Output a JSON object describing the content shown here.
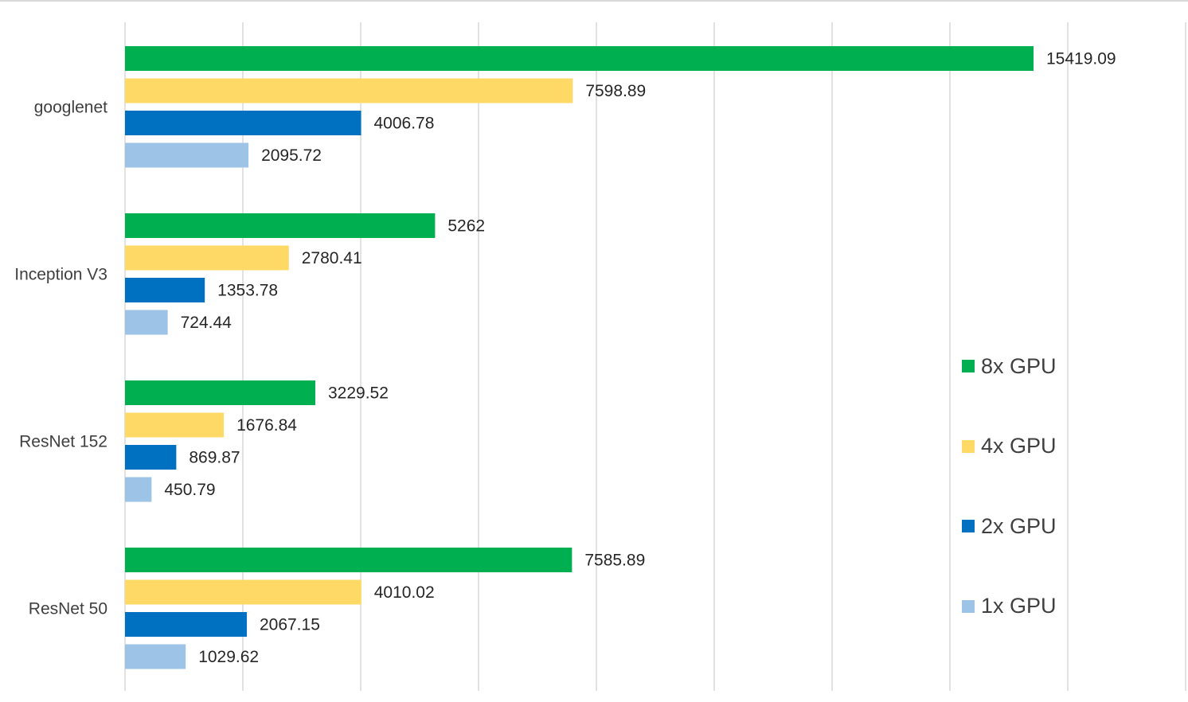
{
  "colors": {
    "gpu8": "#00b050",
    "gpu4": "#ffd966",
    "gpu2": "#0070c0",
    "gpu1": "#9dc3e6",
    "grid": "#d9d9d9"
  },
  "chart_data": {
    "type": "bar",
    "orientation": "horizontal",
    "title": "",
    "xlabel": "",
    "ylabel": "",
    "xlim": [
      0,
      18000
    ],
    "grid": true,
    "legend_position": "right",
    "categories": [
      "googlenet",
      "Inception V3",
      "ResNet 152",
      "ResNet 50"
    ],
    "series": [
      {
        "name": "8x GPU",
        "color": "#00b050",
        "values": [
          15419.09,
          5262,
          3229.52,
          7585.89
        ],
        "labels": [
          "15419.09",
          "5262",
          "3229.52",
          "7585.89"
        ]
      },
      {
        "name": "4x GPU",
        "color": "#ffd966",
        "values": [
          7598.89,
          2780.41,
          1676.84,
          4010.02
        ],
        "labels": [
          "7598.89",
          "2780.41",
          "1676.84",
          "4010.02"
        ]
      },
      {
        "name": "2x GPU",
        "color": "#0070c0",
        "values": [
          4006.78,
          1353.78,
          869.87,
          2067.15
        ],
        "labels": [
          "4006.78",
          "1353.78",
          "869.87",
          "2067.15"
        ]
      },
      {
        "name": "1x GPU",
        "color": "#9dc3e6",
        "values": [
          2095.72,
          724.44,
          450.79,
          1029.62
        ],
        "labels": [
          "2095.72",
          "724.44",
          "450.79",
          "1029.62"
        ]
      }
    ]
  }
}
